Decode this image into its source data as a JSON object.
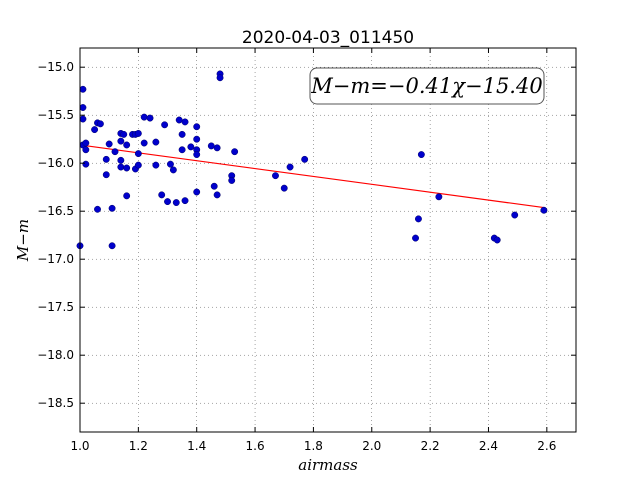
{
  "chart_data": {
    "type": "scatter",
    "title": "2020-04-03_011450",
    "xlabel": "airmass",
    "ylabel": "M−m",
    "xlim": [
      1.0,
      2.7
    ],
    "ylim": [
      -18.8,
      -14.8
    ],
    "y_inverted": true,
    "grid": true,
    "x_ticks": [
      "1.0",
      "1.2",
      "1.4",
      "1.6",
      "1.8",
      "2.0",
      "2.2",
      "2.4",
      "2.6"
    ],
    "y_ticks": [
      "−15.0",
      "−15.5",
      "−16.0",
      "−16.5",
      "−17.0",
      "−17.5",
      "−18.0",
      "−18.5"
    ],
    "annotation": "M−m=−0.41χ−15.40",
    "fit": {
      "slope": -0.41,
      "intercept": -15.4,
      "x_range": [
        1.0,
        2.59
      ],
      "color": "#ff0000"
    },
    "point_color": "#0000cc",
    "points": [
      {
        "x": 1.0,
        "y": -16.86
      },
      {
        "x": 1.01,
        "y": -15.23
      },
      {
        "x": 1.01,
        "y": -15.42
      },
      {
        "x": 1.01,
        "y": -15.54
      },
      {
        "x": 1.01,
        "y": -15.81
      },
      {
        "x": 1.02,
        "y": -15.79
      },
      {
        "x": 1.02,
        "y": -15.86
      },
      {
        "x": 1.02,
        "y": -16.01
      },
      {
        "x": 1.05,
        "y": -15.65
      },
      {
        "x": 1.06,
        "y": -15.58
      },
      {
        "x": 1.07,
        "y": -15.59
      },
      {
        "x": 1.06,
        "y": -16.48
      },
      {
        "x": 1.09,
        "y": -15.96
      },
      {
        "x": 1.09,
        "y": -16.12
      },
      {
        "x": 1.1,
        "y": -15.8
      },
      {
        "x": 1.11,
        "y": -16.47
      },
      {
        "x": 1.11,
        "y": -16.86
      },
      {
        "x": 1.12,
        "y": -15.88
      },
      {
        "x": 1.14,
        "y": -15.69
      },
      {
        "x": 1.14,
        "y": -15.77
      },
      {
        "x": 1.14,
        "y": -15.97
      },
      {
        "x": 1.14,
        "y": -16.04
      },
      {
        "x": 1.15,
        "y": -15.7
      },
      {
        "x": 1.16,
        "y": -15.81
      },
      {
        "x": 1.16,
        "y": -16.05
      },
      {
        "x": 1.16,
        "y": -16.34
      },
      {
        "x": 1.18,
        "y": -15.7
      },
      {
        "x": 1.19,
        "y": -15.7
      },
      {
        "x": 1.19,
        "y": -16.06
      },
      {
        "x": 1.2,
        "y": -15.69
      },
      {
        "x": 1.2,
        "y": -15.9
      },
      {
        "x": 1.2,
        "y": -16.02
      },
      {
        "x": 1.22,
        "y": -15.52
      },
      {
        "x": 1.22,
        "y": -15.79
      },
      {
        "x": 1.24,
        "y": -15.53
      },
      {
        "x": 1.26,
        "y": -15.78
      },
      {
        "x": 1.26,
        "y": -16.02
      },
      {
        "x": 1.28,
        "y": -16.33
      },
      {
        "x": 1.29,
        "y": -15.6
      },
      {
        "x": 1.3,
        "y": -16.4
      },
      {
        "x": 1.31,
        "y": -16.01
      },
      {
        "x": 1.32,
        "y": -16.07
      },
      {
        "x": 1.33,
        "y": -16.41
      },
      {
        "x": 1.34,
        "y": -15.55
      },
      {
        "x": 1.35,
        "y": -15.7
      },
      {
        "x": 1.35,
        "y": -15.86
      },
      {
        "x": 1.36,
        "y": -15.57
      },
      {
        "x": 1.36,
        "y": -16.39
      },
      {
        "x": 1.38,
        "y": -15.83
      },
      {
        "x": 1.4,
        "y": -15.62
      },
      {
        "x": 1.4,
        "y": -15.75
      },
      {
        "x": 1.4,
        "y": -15.86
      },
      {
        "x": 1.4,
        "y": -15.91
      },
      {
        "x": 1.4,
        "y": -16.3
      },
      {
        "x": 1.45,
        "y": -15.82
      },
      {
        "x": 1.46,
        "y": -16.24
      },
      {
        "x": 1.47,
        "y": -15.84
      },
      {
        "x": 1.47,
        "y": -16.33
      },
      {
        "x": 1.48,
        "y": -15.07
      },
      {
        "x": 1.48,
        "y": -15.11
      },
      {
        "x": 1.52,
        "y": -16.13
      },
      {
        "x": 1.52,
        "y": -16.18
      },
      {
        "x": 1.53,
        "y": -15.88
      },
      {
        "x": 1.67,
        "y": -16.13
      },
      {
        "x": 1.7,
        "y": -16.26
      },
      {
        "x": 1.72,
        "y": -16.04
      },
      {
        "x": 1.77,
        "y": -15.96
      },
      {
        "x": 2.15,
        "y": -16.78
      },
      {
        "x": 2.16,
        "y": -16.58
      },
      {
        "x": 2.17,
        "y": -15.91
      },
      {
        "x": 2.23,
        "y": -16.35
      },
      {
        "x": 2.42,
        "y": -16.78
      },
      {
        "x": 2.43,
        "y": -16.8
      },
      {
        "x": 2.49,
        "y": -16.54
      },
      {
        "x": 2.59,
        "y": -16.49
      }
    ]
  }
}
